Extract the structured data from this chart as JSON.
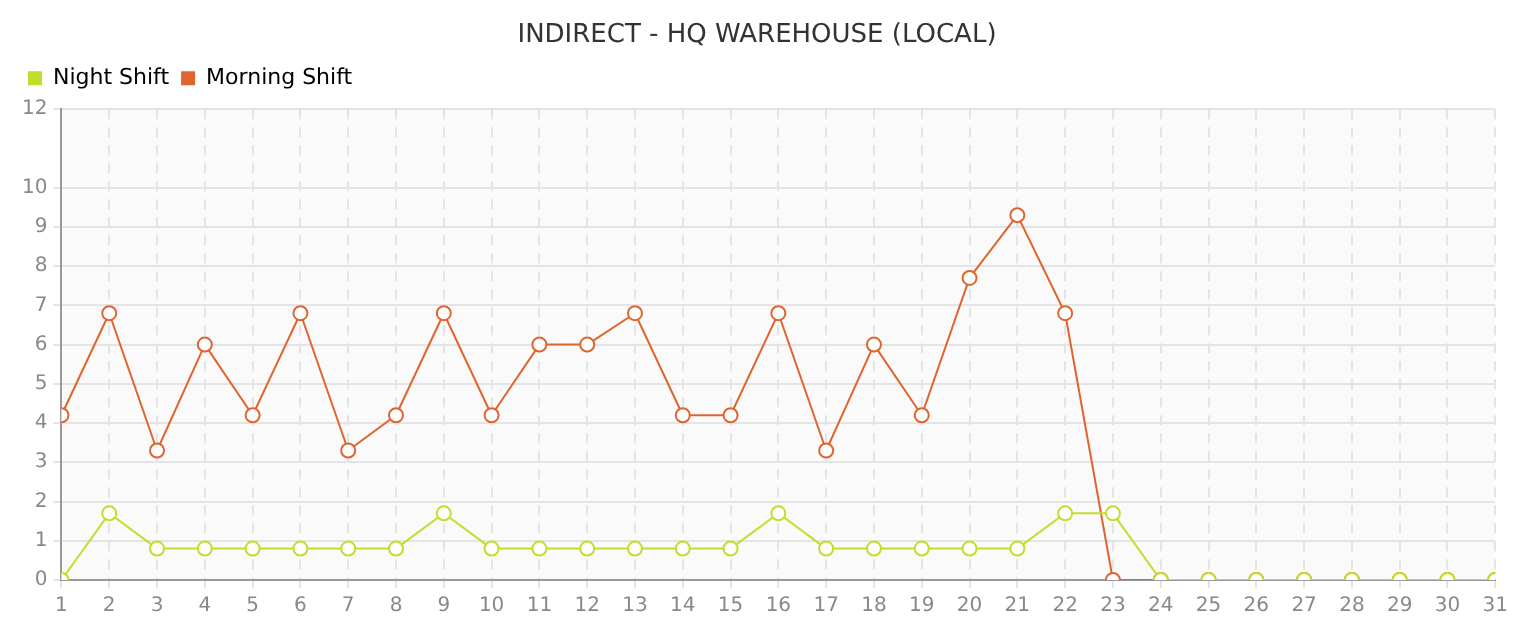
{
  "chart_data": {
    "type": "line",
    "title": "INDIRECT - HQ WAREHOUSE (LOCAL)",
    "x": [
      1,
      2,
      3,
      4,
      5,
      6,
      7,
      8,
      9,
      10,
      11,
      12,
      13,
      14,
      15,
      16,
      17,
      18,
      19,
      20,
      21,
      22,
      23,
      24,
      25,
      26,
      27,
      28,
      29,
      30,
      31
    ],
    "series": [
      {
        "name": "Night Shift",
        "color": "#c2dd2c",
        "values": [
          0,
          1.7,
          0.8,
          0.8,
          0.8,
          0.8,
          0.8,
          0.8,
          1.7,
          0.8,
          0.8,
          0.8,
          0.8,
          0.8,
          0.8,
          1.7,
          0.8,
          0.8,
          0.8,
          0.8,
          0.8,
          1.7,
          1.7,
          0,
          0,
          0,
          0,
          0,
          0,
          0,
          0
        ]
      },
      {
        "name": "Morning Shift",
        "color": "#e0642e",
        "values": [
          4.2,
          6.8,
          3.3,
          6,
          4.2,
          6.8,
          3.3,
          4.2,
          6.8,
          4.2,
          6,
          6,
          6.8,
          4.2,
          4.2,
          6.8,
          3.3,
          6,
          4.2,
          7.7,
          9.3,
          6.8,
          0,
          0,
          0,
          0,
          0,
          0,
          0,
          0,
          0
        ]
      }
    ],
    "xlim": [
      1,
      31
    ],
    "xticks": [
      1,
      2,
      3,
      4,
      5,
      6,
      7,
      8,
      9,
      10,
      11,
      12,
      13,
      14,
      15,
      16,
      17,
      18,
      19,
      20,
      21,
      22,
      23,
      24,
      25,
      26,
      27,
      28,
      29,
      30,
      31
    ],
    "ylim": [
      0,
      12
    ],
    "yticks": [
      0,
      1,
      2,
      3,
      4,
      5,
      6,
      7,
      8,
      9,
      10,
      12
    ],
    "grid": true,
    "legend": "top left",
    "marker": "circle",
    "line_style": "solid"
  }
}
